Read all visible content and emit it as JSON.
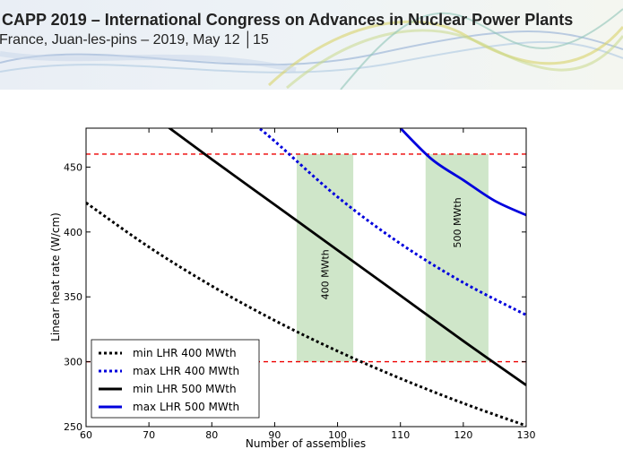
{
  "banner": {
    "title": "CAPP 2019 – International Congress on Advances in Nuclear Power Plants",
    "subtitle": "France, Juan-les-pins – 2019, May 12 │15"
  },
  "chart_data": {
    "type": "line",
    "xlabel": "Number of assemblies",
    "ylabel": "Linear heat rate (W/cm)",
    "xlim": [
      60,
      130
    ],
    "ylim": [
      250,
      480
    ],
    "xticks": [
      60,
      70,
      80,
      90,
      100,
      110,
      120,
      130
    ],
    "yticks": [
      250,
      300,
      350,
      400,
      450
    ],
    "grid": false,
    "legend_position": "lower-left",
    "series": [
      {
        "name": "min LHR 400 MWth",
        "style": "dotted",
        "color": "#000000",
        "x": [
          60,
          70,
          80,
          90,
          100,
          110,
          120,
          130
        ],
        "y": [
          422.5,
          388.4,
          358.4,
          331.8,
          308.2,
          287.1,
          268.0,
          250.7
        ]
      },
      {
        "name": "max LHR 400 MWth",
        "style": "dotted",
        "color": "#0000dd",
        "x": [
          87,
          90,
          100,
          110,
          120,
          130
        ],
        "y": [
          482.0,
          470.0,
          427.0,
          391.0,
          361.0,
          336.0
        ]
      },
      {
        "name": "min LHR 500 MWth",
        "style": "solid",
        "color": "#000000",
        "x": [
          73,
          80,
          90,
          100,
          110,
          120,
          130
        ],
        "y": [
          481.0,
          456.0,
          421.0,
          386.0,
          351.0,
          316.0,
          282.0
        ]
      },
      {
        "name": "max LHR 500 MWth",
        "style": "solid",
        "color": "#0000dd",
        "x": [
          110,
          115,
          120,
          125,
          130
        ],
        "y": [
          480.0,
          456.0,
          440.0,
          424.0,
          413.0
        ]
      }
    ],
    "reference_lines": [
      {
        "y": 460,
        "style": "dashed",
        "color": "#ee0000"
      },
      {
        "y": 300,
        "style": "dashed",
        "color": "#ee0000"
      }
    ],
    "bands": [
      {
        "label": "400 MWth",
        "x_range": [
          93.5,
          102.5
        ],
        "y_range": [
          300,
          460
        ],
        "color": "#cfe6c9"
      },
      {
        "label": "500 MWth",
        "x_range": [
          114.0,
          124.0
        ],
        "y_range": [
          300,
          460
        ],
        "color": "#cfe6c9"
      }
    ]
  }
}
